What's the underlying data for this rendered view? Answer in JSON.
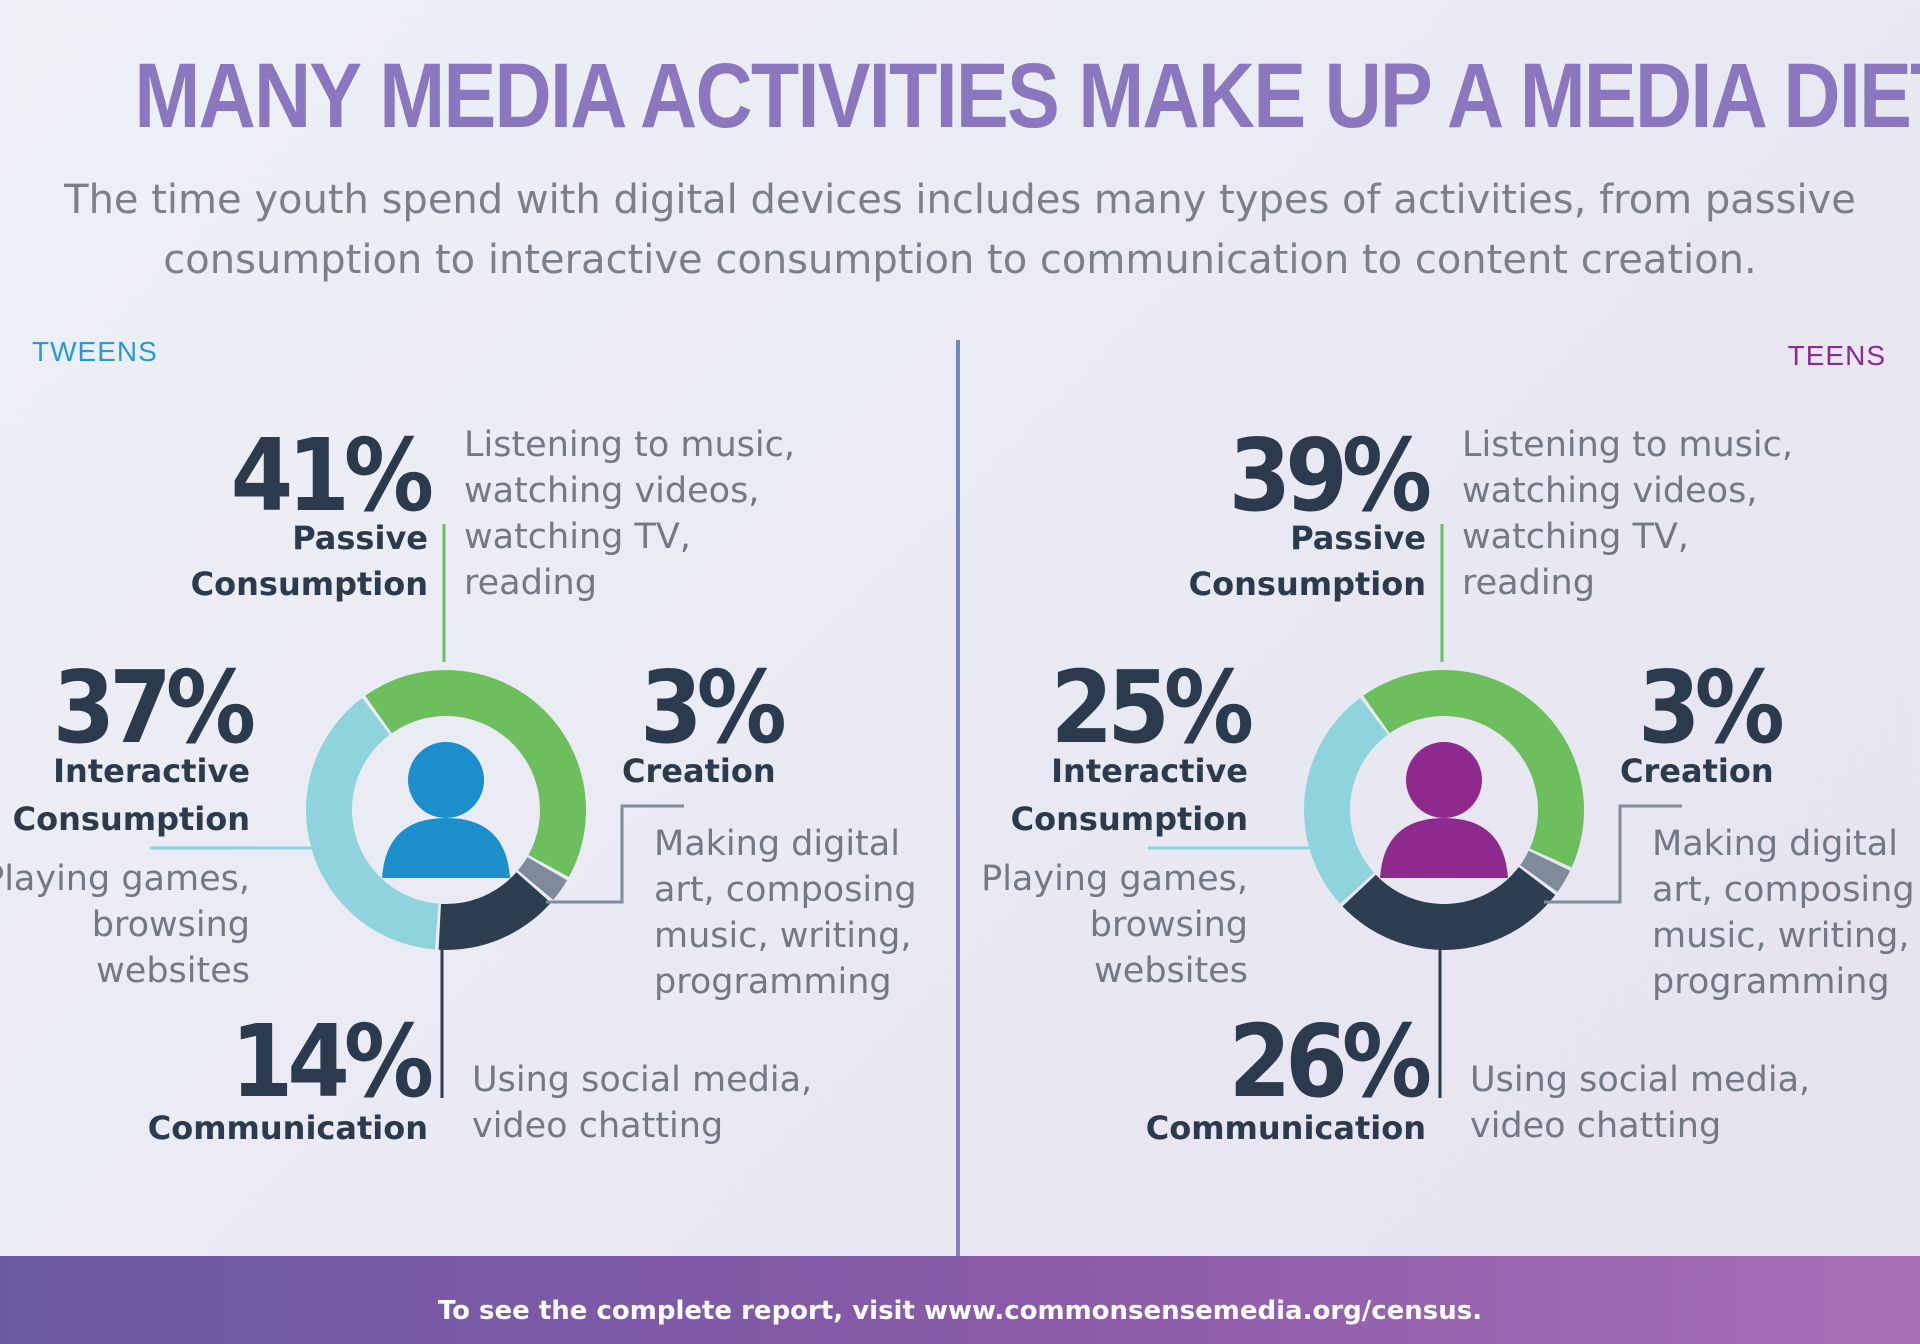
{
  "title": "MANY MEDIA ACTIVITIES MAKE UP A MEDIA DIET",
  "subtitle_line1": "The time youth spend with digital devices includes many types of activities, from passive",
  "subtitle_line2": "consumption to interactive consumption to communication to content creation.",
  "footer": "To see the complete report, visit www.commonsensemedia.org/census.",
  "colors": {
    "passive": "#6dbf5d",
    "interactive": "#8fd3dd",
    "communication": "#2d3e50",
    "creation": "#7f8b98",
    "tweens_label": "#2a9ad6",
    "teens_label": "#8e2b93",
    "tweens_person": "#1a8fcc",
    "teens_person": "#8e2a8e"
  },
  "chart_data": [
    {
      "type": "pie",
      "label": "TWEENS",
      "categories": [
        "Passive Consumption",
        "Interactive Consumption",
        "Communication",
        "Creation"
      ],
      "values": [
        41,
        37,
        14,
        3
      ],
      "value_labels": [
        "41%",
        "37%",
        "14%",
        "3%"
      ],
      "category_lines": [
        [
          "Passive",
          "Consumption"
        ],
        [
          "Interactive",
          "Consumption"
        ],
        [
          "Communication"
        ],
        [
          "Creation"
        ]
      ],
      "descriptions": [
        [
          "Listening to music,",
          "watching videos,",
          "watching TV,",
          "reading"
        ],
        [
          "Playing games,",
          "browsing",
          "websites"
        ],
        [
          "Using social media,",
          "video chatting"
        ],
        [
          "Making digital",
          "art, composing",
          "music, writing,",
          "programming"
        ]
      ]
    },
    {
      "type": "pie",
      "label": "TEENS",
      "categories": [
        "Passive Consumption",
        "Interactive Consumption",
        "Communication",
        "Creation"
      ],
      "values": [
        39,
        25,
        26,
        3
      ],
      "value_labels": [
        "39%",
        "25%",
        "26%",
        "3%"
      ],
      "category_lines": [
        [
          "Passive",
          "Consumption"
        ],
        [
          "Interactive",
          "Consumption"
        ],
        [
          "Communication"
        ],
        [
          "Creation"
        ]
      ],
      "descriptions": [
        [
          "Listening to music,",
          "watching videos,",
          "watching TV,",
          "reading"
        ],
        [
          "Playing games,",
          "browsing",
          "websites"
        ],
        [
          "Using social media,",
          "video chatting"
        ],
        [
          "Making digital",
          "art, composing",
          "music, writing,",
          "programming"
        ]
      ]
    }
  ]
}
